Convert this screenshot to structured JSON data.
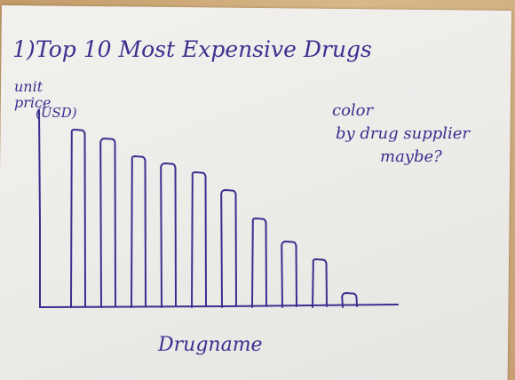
{
  "chart_data": {
    "type": "bar",
    "title": "Top 10 Most Expensive Drugs",
    "title_marker": "1)",
    "ylabel_lines": [
      "unit",
      "price",
      "(USD)"
    ],
    "xlabel": "Drugname",
    "categories": [
      "",
      "",
      "",
      "",
      "",
      "",
      "",
      "",
      "",
      ""
    ],
    "values": [
      100,
      95,
      85,
      81,
      76,
      66,
      50,
      37,
      27,
      8
    ],
    "ylim": [
      0,
      110
    ],
    "grid": false,
    "annotation_lines": [
      "color",
      "by drug supplier",
      "maybe?"
    ],
    "ink_color": "#3a2f8f",
    "paper_color": "#eeede9"
  }
}
